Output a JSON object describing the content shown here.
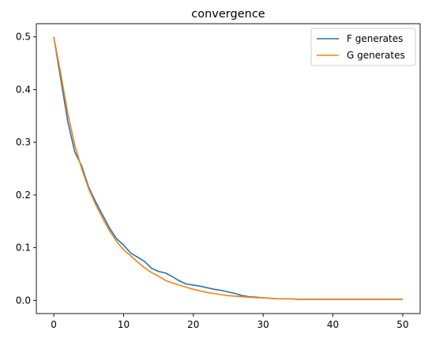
{
  "chart_data": {
    "type": "line",
    "title": "convergence",
    "xlabel": "",
    "ylabel": "",
    "xlim": [
      -2.5,
      52.5
    ],
    "ylim": [
      -0.025,
      0.525
    ],
    "xticks": [
      0,
      10,
      20,
      30,
      40,
      50
    ],
    "yticks": [
      0.0,
      0.1,
      0.2,
      0.3,
      0.4,
      0.5
    ],
    "xtick_labels": [
      "0",
      "10",
      "20",
      "30",
      "40",
      "50"
    ],
    "ytick_labels": [
      "0.0",
      "0.1",
      "0.2",
      "0.3",
      "0.4",
      "0.5"
    ],
    "grid": false,
    "legend_position": "top-right",
    "series": [
      {
        "name": "F generates",
        "color": "#1f77b4",
        "x": [
          0,
          1,
          2,
          3,
          4,
          5,
          6,
          7,
          8,
          9,
          10,
          11,
          12,
          13,
          14,
          15,
          16,
          17,
          18,
          19,
          20,
          21,
          22,
          23,
          24,
          25,
          26,
          27,
          28,
          29,
          30,
          31,
          32,
          33,
          34,
          35,
          36,
          37,
          38,
          39,
          40,
          41,
          42,
          43,
          44,
          45,
          46,
          47,
          48,
          49,
          50
        ],
        "y": [
          0.5,
          0.42,
          0.34,
          0.282,
          0.255,
          0.215,
          0.187,
          0.162,
          0.137,
          0.117,
          0.105,
          0.09,
          0.082,
          0.074,
          0.061,
          0.055,
          0.052,
          0.045,
          0.037,
          0.031,
          0.029,
          0.027,
          0.024,
          0.021,
          0.019,
          0.016,
          0.013,
          0.009,
          0.007,
          0.006,
          0.005,
          0.004,
          0.003,
          0.003,
          0.003,
          0.002,
          0.002,
          0.002,
          0.002,
          0.002,
          0.002,
          0.002,
          0.002,
          0.002,
          0.002,
          0.002,
          0.002,
          0.002,
          0.002,
          0.002,
          0.002
        ]
      },
      {
        "name": "G generates",
        "color": "#ff7f0e",
        "x": [
          0,
          1,
          2,
          3,
          4,
          5,
          6,
          7,
          8,
          9,
          10,
          11,
          12,
          13,
          14,
          15,
          16,
          17,
          18,
          19,
          20,
          21,
          22,
          23,
          24,
          25,
          26,
          27,
          28,
          29,
          30,
          31,
          32,
          33,
          34,
          35,
          36,
          37,
          38,
          39,
          40,
          41,
          42,
          43,
          44,
          45,
          46,
          47,
          48,
          49,
          50
        ],
        "y": [
          0.5,
          0.43,
          0.355,
          0.295,
          0.25,
          0.212,
          0.182,
          0.156,
          0.132,
          0.112,
          0.096,
          0.085,
          0.073,
          0.062,
          0.053,
          0.046,
          0.038,
          0.033,
          0.029,
          0.025,
          0.021,
          0.018,
          0.015,
          0.013,
          0.011,
          0.009,
          0.008,
          0.007,
          0.006,
          0.005,
          0.005,
          0.004,
          0.003,
          0.003,
          0.003,
          0.002,
          0.002,
          0.002,
          0.002,
          0.002,
          0.002,
          0.002,
          0.002,
          0.002,
          0.002,
          0.002,
          0.002,
          0.002,
          0.002,
          0.002,
          0.002
        ]
      }
    ]
  }
}
